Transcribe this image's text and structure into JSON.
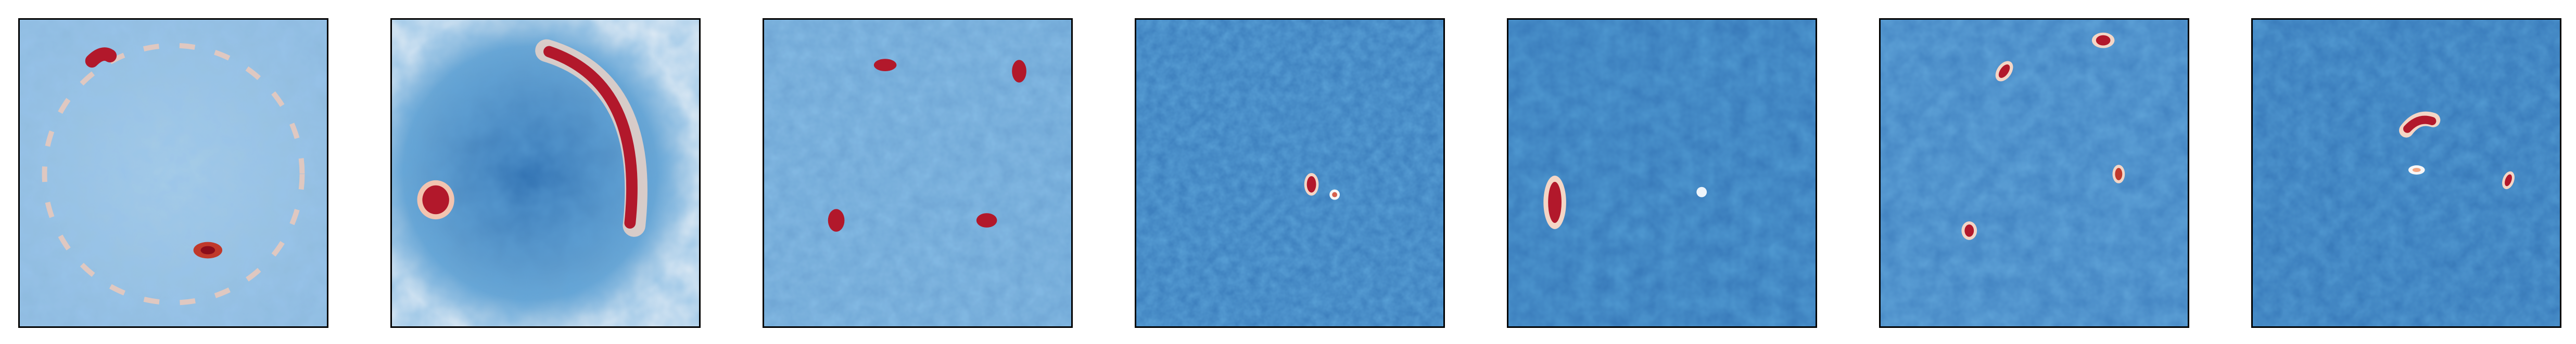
{
  "figure": {
    "panel_count": 7,
    "colormap": "RdBu_r",
    "colors": {
      "low": "#1f5fa8",
      "mid": "#9cc7e4",
      "high_white": "#f7f7f7",
      "hot": "#b2182b",
      "frame": "#000000"
    },
    "panels": [
      {
        "id": "panel-1",
        "description_icon": "ring-emission-icon"
      },
      {
        "id": "panel-2",
        "description_icon": "arc-and-blob-icon"
      },
      {
        "id": "panel-3",
        "description_icon": "four-spot-icon"
      },
      {
        "id": "panel-4",
        "description_icon": "central-pair-icon"
      },
      {
        "id": "panel-5",
        "description_icon": "elongated-spot-icon"
      },
      {
        "id": "panel-6",
        "description_icon": "four-spot-icon"
      },
      {
        "id": "panel-7",
        "description_icon": "arc-and-spots-icon"
      }
    ]
  }
}
